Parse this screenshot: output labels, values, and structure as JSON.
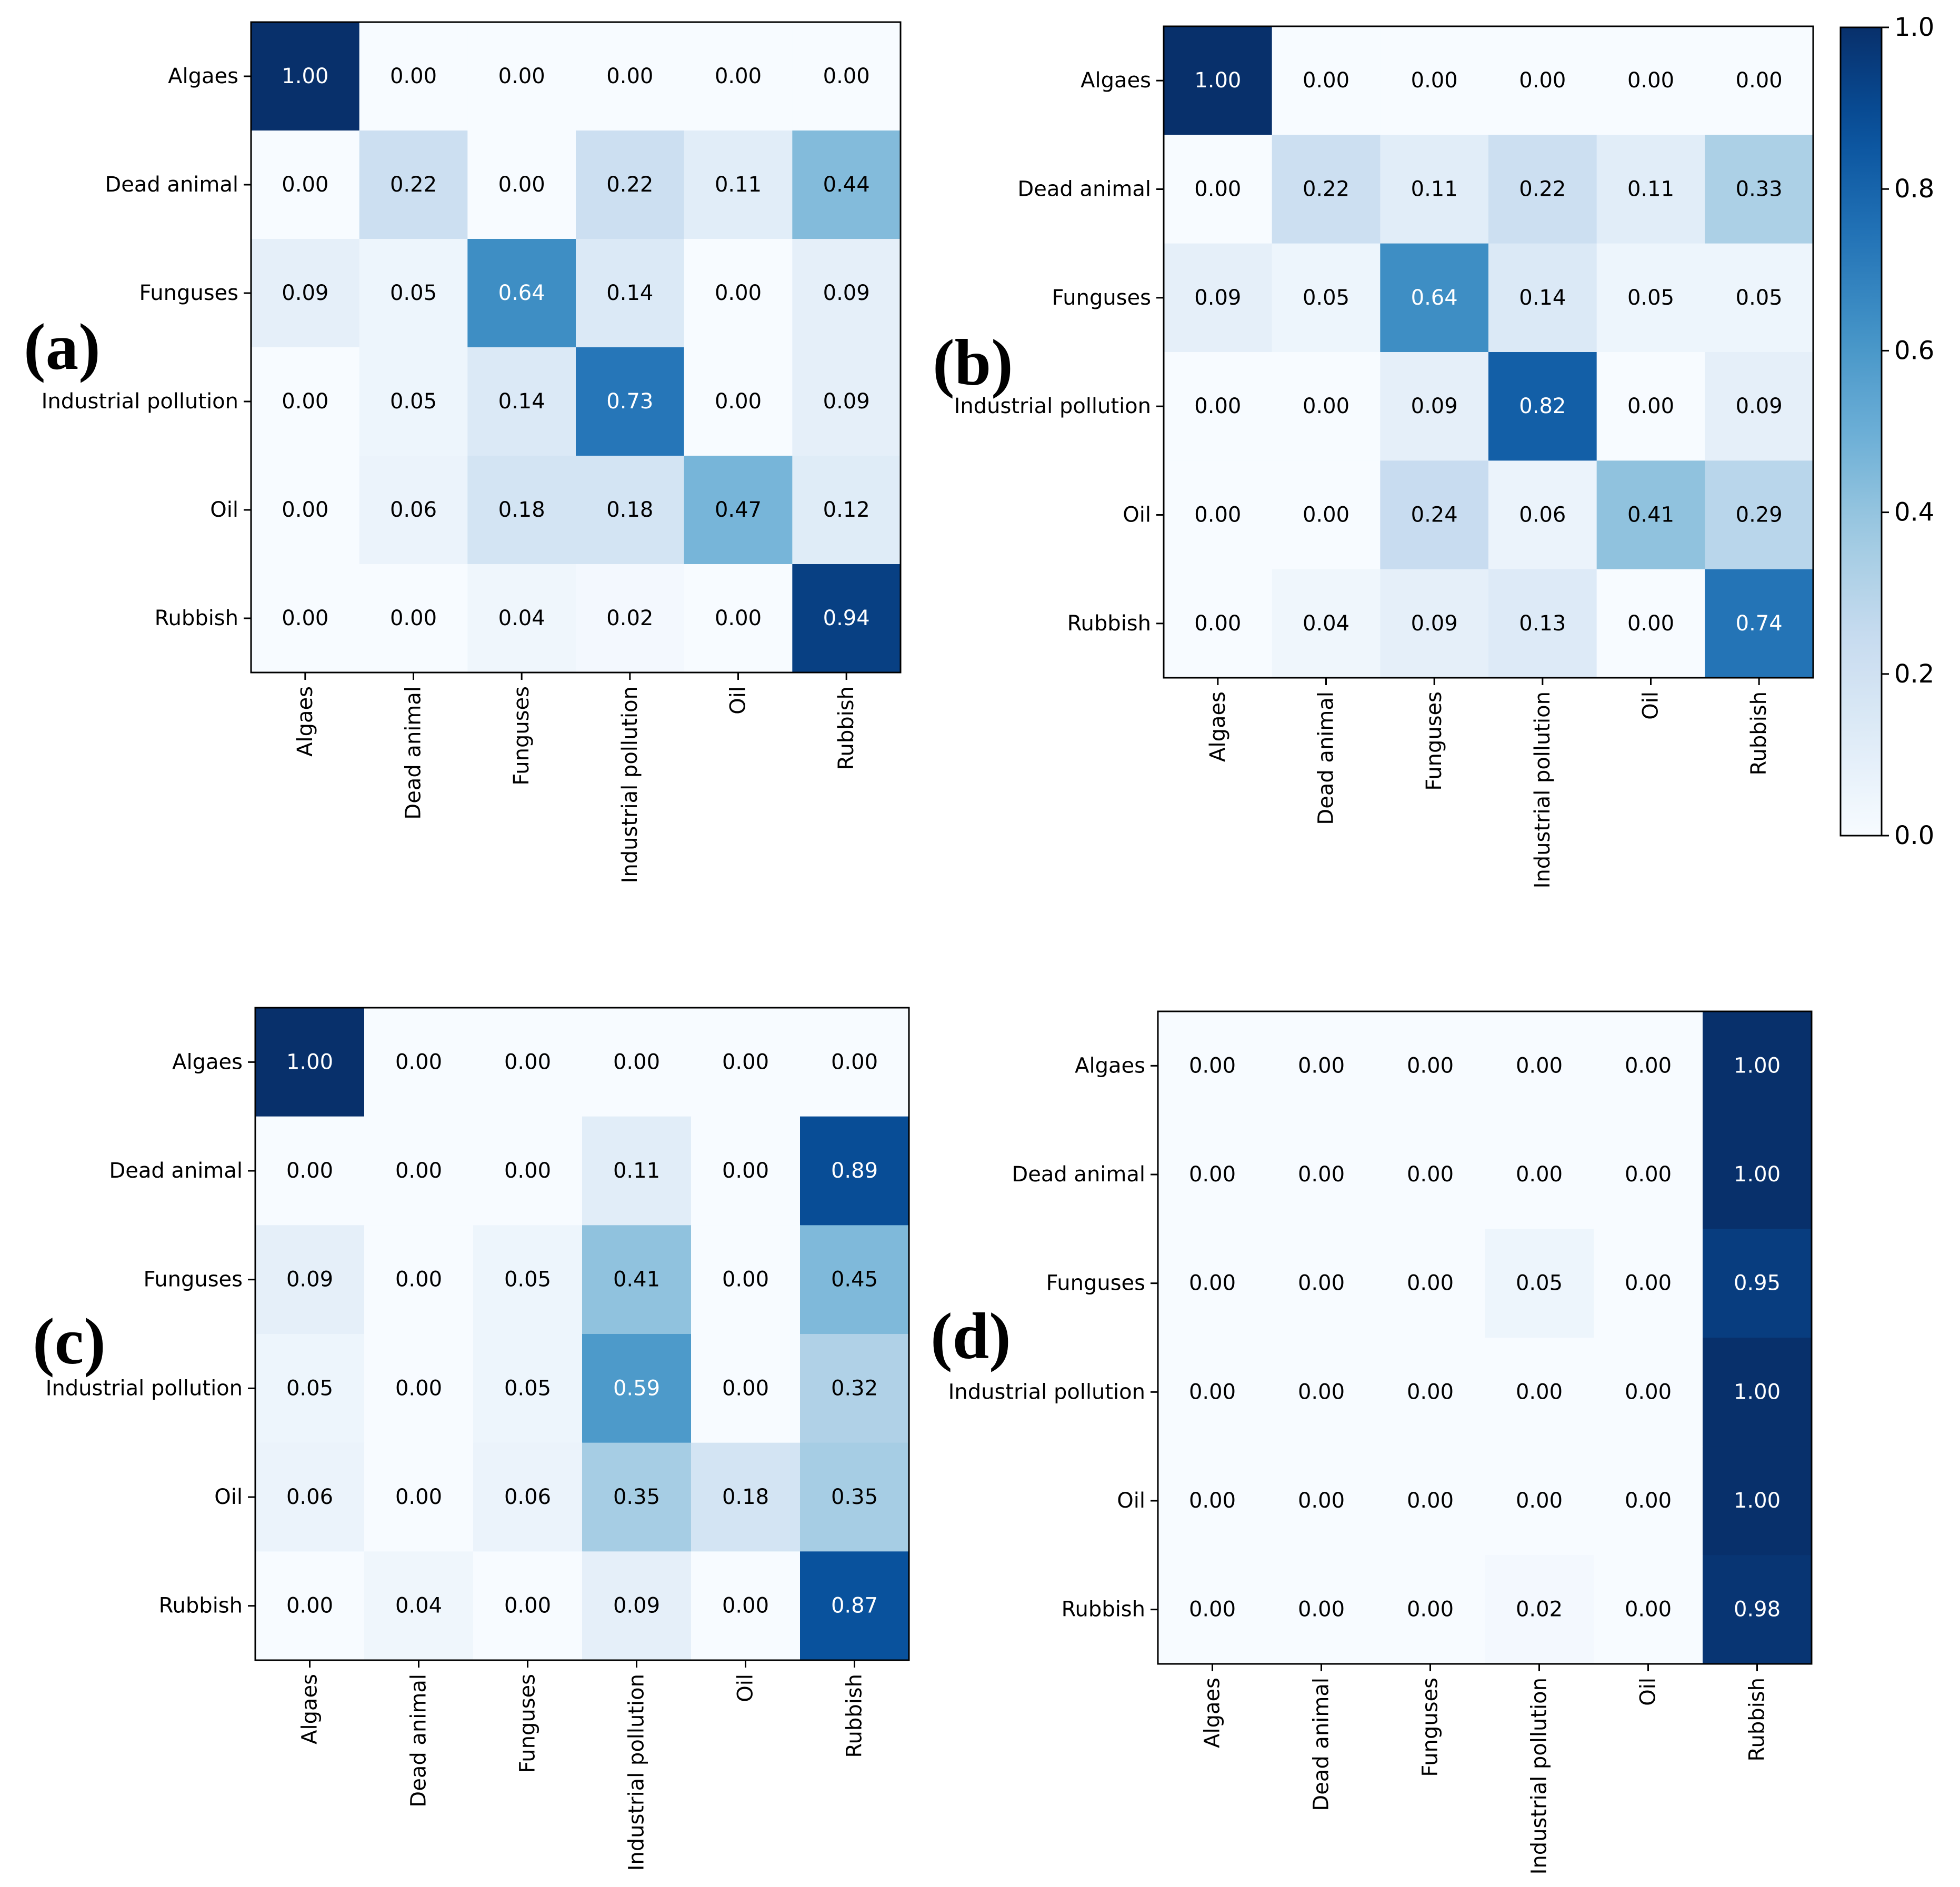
{
  "figure": {
    "colorbar": {
      "colormap": "Blues",
      "range": [
        0.0,
        1.0
      ],
      "ticks": [
        "0.0",
        "0.2",
        "0.4",
        "0.6",
        "0.8",
        "1.0"
      ]
    }
  },
  "chart_data": [
    {
      "type": "heatmap",
      "panel_label": "(a)",
      "rows": [
        "Algaes",
        "Dead animal",
        "Funguses",
        "Industrial pollution",
        "Oil",
        "Rubbish"
      ],
      "columns": [
        "Algaes",
        "Dead animal",
        "Funguses",
        "Industrial pollution",
        "Oil",
        "Rubbish"
      ],
      "values": [
        [
          1.0,
          0.0,
          0.0,
          0.0,
          0.0,
          0.0
        ],
        [
          0.0,
          0.22,
          0.0,
          0.22,
          0.11,
          0.44
        ],
        [
          0.09,
          0.05,
          0.64,
          0.14,
          0.0,
          0.09
        ],
        [
          0.0,
          0.05,
          0.14,
          0.73,
          0.0,
          0.09
        ],
        [
          0.0,
          0.06,
          0.18,
          0.18,
          0.47,
          0.12
        ],
        [
          0.0,
          0.0,
          0.04,
          0.02,
          0.0,
          0.94
        ]
      ],
      "range": [
        0,
        1
      ]
    },
    {
      "type": "heatmap",
      "panel_label": "(b)",
      "rows": [
        "Algaes",
        "Dead animal",
        "Funguses",
        "Industrial pollution",
        "Oil",
        "Rubbish"
      ],
      "columns": [
        "Algaes",
        "Dead animal",
        "Funguses",
        "Industrial pollution",
        "Oil",
        "Rubbish"
      ],
      "values": [
        [
          1.0,
          0.0,
          0.0,
          0.0,
          0.0,
          0.0
        ],
        [
          0.0,
          0.22,
          0.11,
          0.22,
          0.11,
          0.33
        ],
        [
          0.09,
          0.05,
          0.64,
          0.14,
          0.05,
          0.05
        ],
        [
          0.0,
          0.0,
          0.09,
          0.82,
          0.0,
          0.09
        ],
        [
          0.0,
          0.0,
          0.24,
          0.06,
          0.41,
          0.29
        ],
        [
          0.0,
          0.04,
          0.09,
          0.13,
          0.0,
          0.74
        ]
      ],
      "range": [
        0,
        1
      ]
    },
    {
      "type": "heatmap",
      "panel_label": "(c)",
      "rows": [
        "Algaes",
        "Dead animal",
        "Funguses",
        "Industrial pollution",
        "Oil",
        "Rubbish"
      ],
      "columns": [
        "Algaes",
        "Dead animal",
        "Funguses",
        "Industrial pollution",
        "Oil",
        "Rubbish"
      ],
      "values": [
        [
          1.0,
          0.0,
          0.0,
          0.0,
          0.0,
          0.0
        ],
        [
          0.0,
          0.0,
          0.0,
          0.11,
          0.0,
          0.89
        ],
        [
          0.09,
          0.0,
          0.05,
          0.41,
          0.0,
          0.45
        ],
        [
          0.05,
          0.0,
          0.05,
          0.59,
          0.0,
          0.32
        ],
        [
          0.06,
          0.0,
          0.06,
          0.35,
          0.18,
          0.35
        ],
        [
          0.0,
          0.04,
          0.0,
          0.09,
          0.0,
          0.87
        ]
      ],
      "range": [
        0,
        1
      ]
    },
    {
      "type": "heatmap",
      "panel_label": "(d)",
      "rows": [
        "Algaes",
        "Dead animal",
        "Funguses",
        "Industrial pollution",
        "Oil",
        "Rubbish"
      ],
      "columns": [
        "Algaes",
        "Dead animal",
        "Funguses",
        "Industrial pollution",
        "Oil",
        "Rubbish"
      ],
      "values": [
        [
          0.0,
          0.0,
          0.0,
          0.0,
          0.0,
          1.0
        ],
        [
          0.0,
          0.0,
          0.0,
          0.0,
          0.0,
          1.0
        ],
        [
          0.0,
          0.0,
          0.0,
          0.05,
          0.0,
          0.95
        ],
        [
          0.0,
          0.0,
          0.0,
          0.0,
          0.0,
          1.0
        ],
        [
          0.0,
          0.0,
          0.0,
          0.0,
          0.0,
          1.0
        ],
        [
          0.0,
          0.0,
          0.0,
          0.02,
          0.0,
          0.98
        ]
      ],
      "range": [
        0,
        1
      ]
    }
  ]
}
